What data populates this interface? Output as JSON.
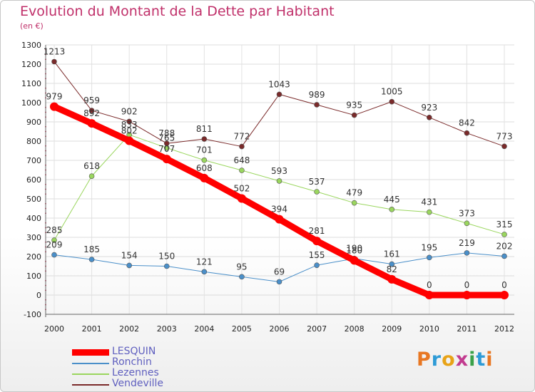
{
  "title": "Evolution du Montant de la Dette par Habitant",
  "subtitle": "(en €)",
  "brand": {
    "text": "Proxiti",
    "colors": [
      "#e87722",
      "#2e9bd6",
      "#e8a317",
      "#c23b8f",
      "#3aa14a",
      "#2e9bd6",
      "#e87722"
    ]
  },
  "chart_data": {
    "type": "line",
    "title": "Evolution du Montant de la Dette par Habitant",
    "ylabel": "(en €)",
    "xlabel": "",
    "x": [
      "2000",
      "2001",
      "2002",
      "2003",
      "2004",
      "2005",
      "2006",
      "2007",
      "2008",
      "2009",
      "2010",
      "2011",
      "2012"
    ],
    "ylim": [
      -100,
      1300
    ],
    "yticks": [
      "-100",
      "0",
      "100",
      "200",
      "300",
      "400",
      "500",
      "600",
      "700",
      "800",
      "900",
      "1000",
      "1100",
      "1200",
      "1300"
    ],
    "grid": true,
    "legend_position": "bottom-left",
    "series": [
      {
        "name": "LESQUIN",
        "color": "#ff0000",
        "values": [
          979,
          892,
          802,
          707,
          608,
          502,
          394,
          281,
          180,
          82,
          0,
          0,
          0
        ]
      },
      {
        "name": "Ronchin",
        "color": "#4a8fc9",
        "values": [
          209,
          185,
          154,
          150,
          121,
          95,
          69,
          155,
          190,
          161,
          195,
          219,
          202
        ]
      },
      {
        "name": "Lezennes",
        "color": "#9ad65e",
        "values": [
          285,
          618,
          833,
          765,
          701,
          648,
          593,
          537,
          479,
          445,
          431,
          373,
          315
        ]
      },
      {
        "name": "Vendeville",
        "color": "#7a2a2a",
        "values": [
          1213,
          959,
          902,
          788,
          811,
          772,
          1043,
          989,
          935,
          1005,
          923,
          842,
          773
        ]
      }
    ]
  }
}
